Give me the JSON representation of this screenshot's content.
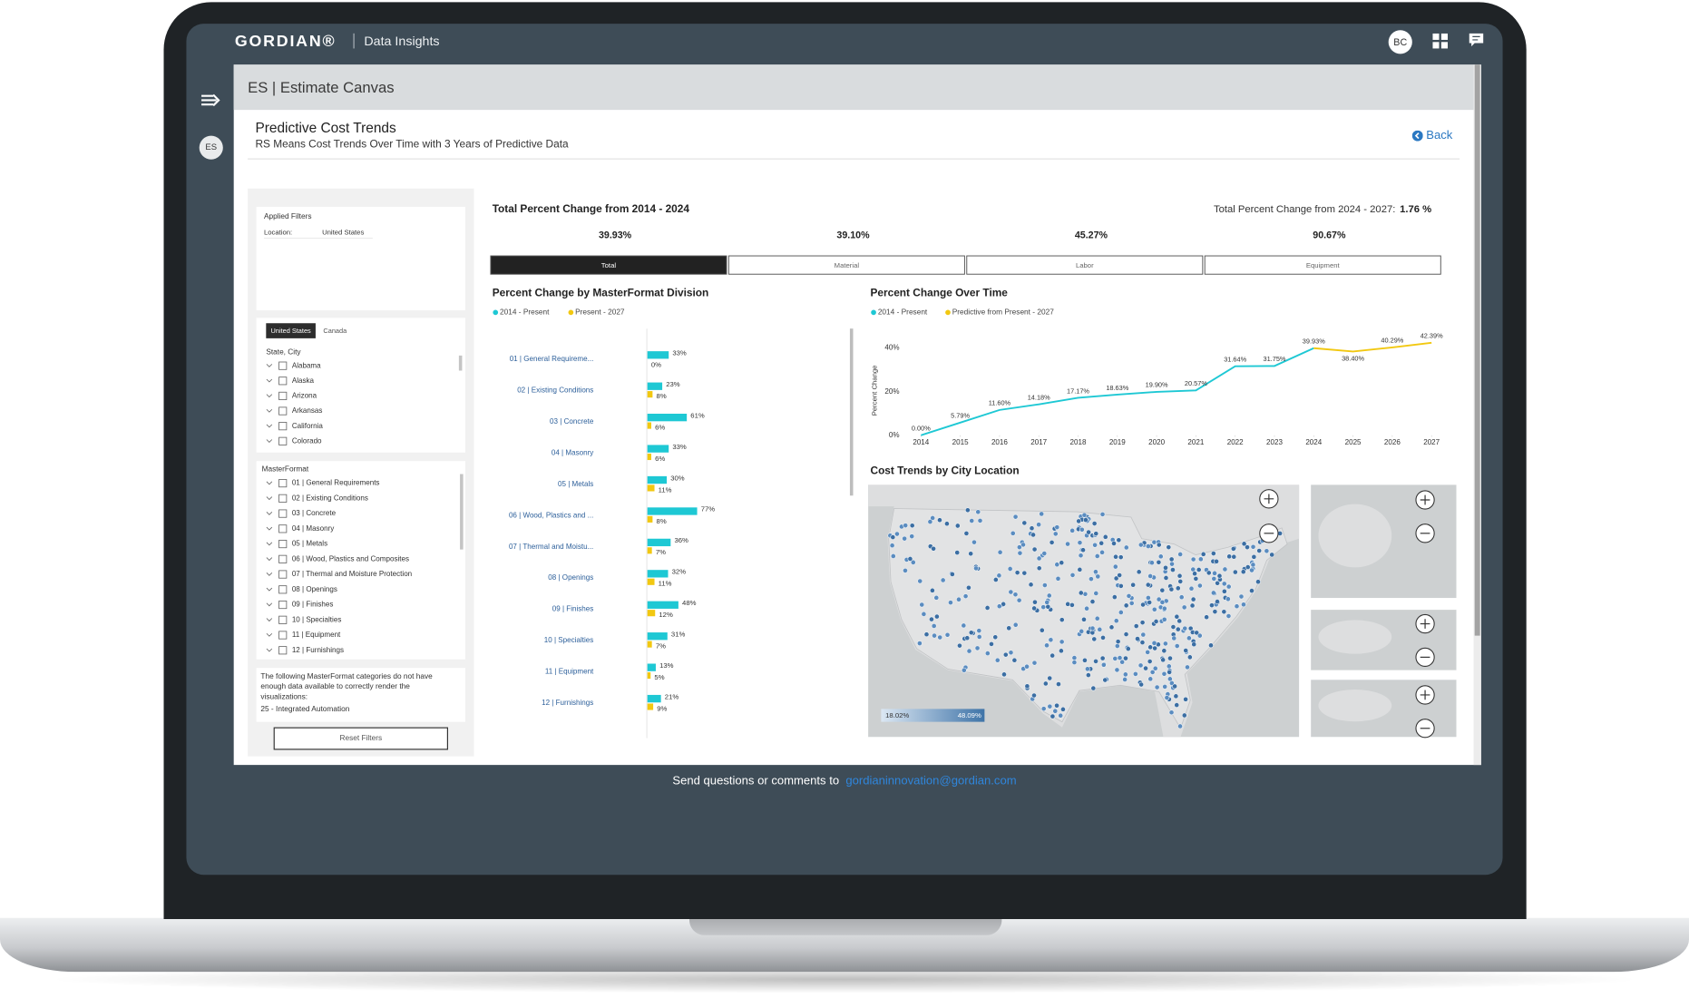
{
  "header": {
    "brand": "GORDIAN®",
    "product": "Data Insights",
    "user_initials": "BC"
  },
  "nav": {
    "workspace": "ES"
  },
  "breadcrumb": "ES | Estimate Canvas",
  "page": {
    "title": "Predictive Cost Trends",
    "subtitle": "RS Means Cost Trends Over Time with 3 Years of Predictive Data",
    "back": "Back"
  },
  "filters": {
    "applied_title": "Applied Filters",
    "applied": [
      {
        "key": "Location:",
        "value": "United States"
      }
    ],
    "country_tabs": [
      {
        "label": "United States",
        "active": true
      },
      {
        "label": "Canada",
        "active": false
      }
    ],
    "state_label": "State, City",
    "states": [
      "Alabama",
      "Alaska",
      "Arizona",
      "Arkansas",
      "California",
      "Colorado"
    ],
    "masterformat_label": "MasterFormat",
    "divisions": [
      "01 | General Requirements",
      "02 | Existing Conditions",
      "03 | Concrete",
      "04 | Masonry",
      "05 | Metals",
      "06 | Wood, Plastics and Composites",
      "07 | Thermal and Moisture Protection",
      "08 | Openings",
      "09 | Finishes",
      "10 | Specialties",
      "11 | Equipment",
      "12 | Furnishings"
    ],
    "note": "The following MasterFormat categories do not have enough data available to correctly render the visualizations:",
    "note_item": "25 - Integrated Automation",
    "reset": "Reset Filters"
  },
  "summary": {
    "title": "Total Percent Change from 2014 - 2024",
    "forecast_label": "Total Percent Change from 2024 - 2027:",
    "forecast_value": "1.76 %",
    "tabs": [
      {
        "label": "Total",
        "value": "39.93%",
        "active": true
      },
      {
        "label": "Material",
        "value": "39.10%",
        "active": false
      },
      {
        "label": "Labor",
        "value": "45.27%",
        "active": false
      },
      {
        "label": "Equipment",
        "value": "90.67%",
        "active": false
      }
    ]
  },
  "chart_data": [
    {
      "type": "bar",
      "orientation": "horizontal",
      "title": "Percent Change by MasterFormat Division",
      "categories": [
        "01 | General Requireme...",
        "02 | Existing Conditions",
        "03 | Concrete",
        "04 | Masonry",
        "05 | Metals",
        "06 | Wood, Plastics and ...",
        "07 | Thermal and Moistu...",
        "08 | Openings",
        "09 | Finishes",
        "10 | Specialties",
        "11 | Equipment",
        "12 | Furnishings"
      ],
      "series": [
        {
          "name": "2014 - Present",
          "color": "#1ec8d4",
          "values": [
            33,
            23,
            61,
            33,
            30,
            77,
            36,
            32,
            48,
            31,
            13,
            21
          ],
          "value_labels": [
            "33%",
            "23%",
            "61%",
            "33%",
            "30%",
            "77%",
            "36%",
            "32%",
            "48%",
            "31%",
            "13%",
            "21%"
          ]
        },
        {
          "name": "Present - 2027",
          "color": "#f2c811",
          "values": [
            0,
            8,
            6,
            6,
            11,
            8,
            7,
            11,
            12,
            7,
            5,
            9
          ],
          "value_labels": [
            "0%",
            "8%",
            "6%",
            "6%",
            "11%",
            "8%",
            "7%",
            "11%",
            "12%",
            "7%",
            "5%",
            "9%"
          ]
        }
      ]
    },
    {
      "type": "line",
      "title": "Percent Change Over Time",
      "y_axis_title": "Percent Change",
      "x": [
        2014,
        2015,
        2016,
        2017,
        2018,
        2019,
        2020,
        2021,
        2022,
        2023,
        2024,
        2025,
        2026,
        2027
      ],
      "xlim": [
        2014,
        2027
      ],
      "xticks": [
        2014,
        2015,
        2016,
        2017,
        2018,
        2019,
        2020,
        2021,
        2022,
        2023,
        2024,
        2025,
        2026,
        2027
      ],
      "ylim": [
        0,
        45
      ],
      "yticks": [
        {
          "value": 0,
          "label": "0%"
        },
        {
          "value": 20,
          "label": "20%"
        },
        {
          "value": 40,
          "label": "40%"
        }
      ],
      "grid": false,
      "series": [
        {
          "name": "2014 - Present",
          "color": "#1ec8d4",
          "values": [
            0.0,
            5.79,
            11.6,
            14.18,
            17.17,
            18.63,
            19.9,
            20.57,
            31.64,
            31.75,
            39.93,
            null,
            null,
            null
          ],
          "value_labels": [
            "0.00%",
            "5.79%",
            "11.60%",
            "14.18%",
            "17.17%",
            "18.63%",
            "19.90%",
            "20.57%",
            "31.64%",
            "31.75%",
            "39.93%",
            null,
            null,
            null
          ]
        },
        {
          "name": "Predictive from Present - 2027",
          "color": "#f2c811",
          "values": [
            null,
            null,
            null,
            null,
            null,
            null,
            null,
            null,
            null,
            null,
            39.93,
            38.4,
            40.29,
            42.39
          ],
          "value_labels": [
            null,
            null,
            null,
            null,
            null,
            null,
            null,
            null,
            null,
            null,
            null,
            "38.40%",
            "40.29%",
            "42.39%"
          ]
        }
      ]
    }
  ],
  "map": {
    "title": "Cost Trends by City Location",
    "legend_min": "18.02%",
    "legend_max": "48.09%"
  },
  "footer": {
    "text": "Send questions or comments to",
    "email": "gordianinnovation@gordian.com"
  }
}
